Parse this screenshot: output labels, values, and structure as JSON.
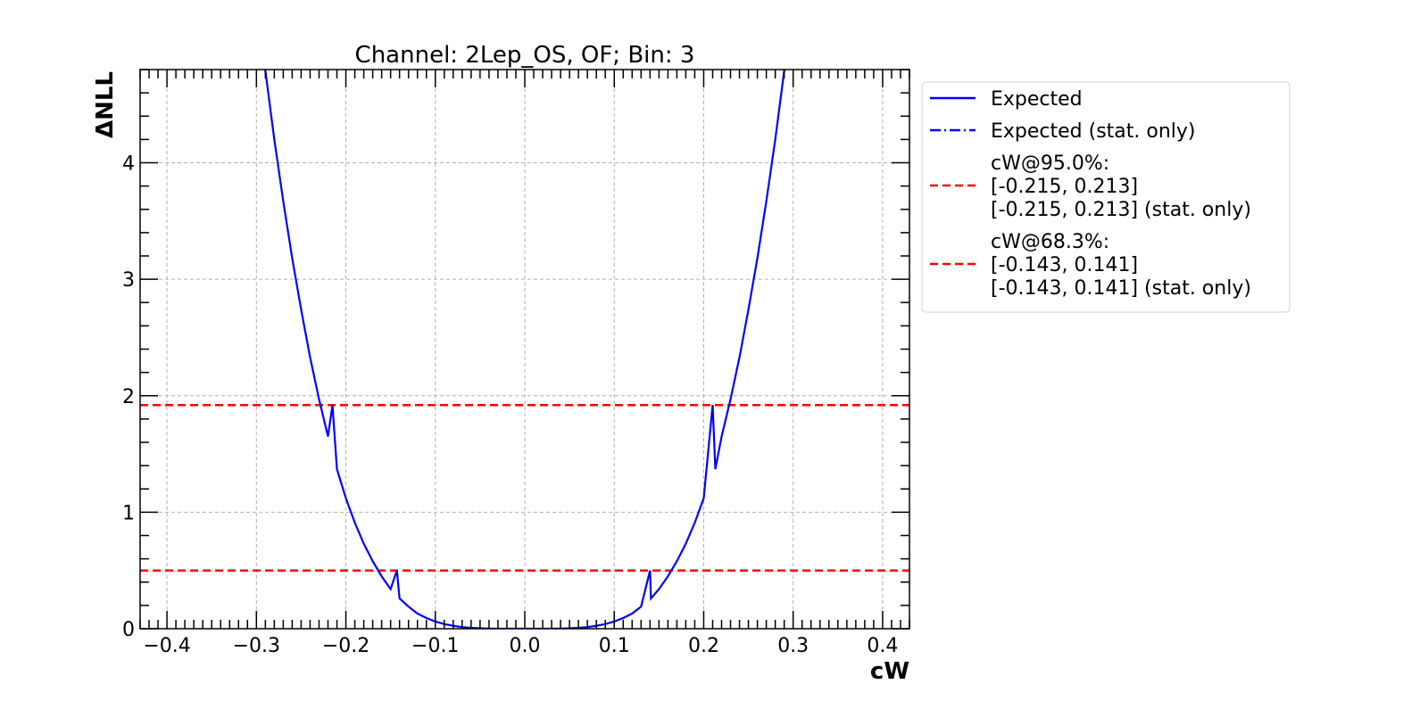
{
  "chart_data": {
    "type": "line",
    "title": "Channel: 2Lep_OS, OF; Bin: 3",
    "xlabel": "cW",
    "ylabel": "ΔNLL",
    "xlim": [
      -0.43,
      0.43
    ],
    "ylim": [
      0,
      4.8
    ],
    "xticks": [
      -0.4,
      -0.3,
      -0.2,
      -0.1,
      0.0,
      0.1,
      0.2,
      0.3,
      0.4
    ],
    "xtick_labels": [
      "−0.4",
      "−0.3",
      "−0.2",
      "−0.1",
      "0.0",
      "0.1",
      "0.2",
      "0.3",
      "0.4"
    ],
    "yticks": [
      0,
      1,
      2,
      3,
      4
    ],
    "ytick_labels": [
      "0",
      "1",
      "2",
      "3",
      "4"
    ],
    "grid": true,
    "legend_position": "outside-right-top",
    "series": [
      {
        "name": "Expected",
        "style": "solid",
        "color": "#0000ff",
        "x": [
          -0.3,
          -0.29,
          -0.28,
          -0.27,
          -0.26,
          -0.25,
          -0.24,
          -0.23,
          -0.22,
          -0.215,
          -0.21,
          -0.2,
          -0.19,
          -0.18,
          -0.17,
          -0.16,
          -0.15,
          -0.143,
          -0.14,
          -0.13,
          -0.12,
          -0.11,
          -0.1,
          -0.09,
          -0.08,
          -0.07,
          -0.06,
          -0.05,
          -0.04,
          -0.03,
          -0.02,
          -0.01,
          0.0,
          0.01,
          0.02,
          0.03,
          0.04,
          0.05,
          0.06,
          0.07,
          0.08,
          0.09,
          0.1,
          0.11,
          0.12,
          0.13,
          0.14,
          0.141,
          0.15,
          0.16,
          0.17,
          0.18,
          0.19,
          0.2,
          0.21,
          0.213,
          0.22,
          0.23,
          0.24,
          0.25,
          0.26,
          0.27,
          0.28,
          0.29,
          0.3
        ],
        "y": [
          5.43,
          4.79,
          4.2,
          3.67,
          3.18,
          2.74,
          2.33,
          1.97,
          1.65,
          1.92,
          1.37,
          1.12,
          0.91,
          0.73,
          0.58,
          0.45,
          0.34,
          0.5,
          0.26,
          0.19,
          0.13,
          0.092,
          0.062,
          0.04,
          0.025,
          0.014,
          0.0077,
          0.0037,
          0.0015,
          0.0005,
          0.0001,
          0.0,
          0.0,
          0.0,
          0.0001,
          0.0005,
          0.0015,
          0.0037,
          0.0077,
          0.014,
          0.025,
          0.04,
          0.062,
          0.092,
          0.13,
          0.19,
          0.5,
          0.26,
          0.34,
          0.45,
          0.58,
          0.73,
          0.91,
          1.12,
          1.92,
          1.37,
          1.65,
          1.97,
          2.33,
          2.74,
          3.18,
          3.67,
          4.2,
          4.79,
          5.43
        ]
      },
      {
        "name": "Expected (stat. only)",
        "style": "dashdot",
        "color": "#0000ff",
        "x": [],
        "y": []
      }
    ],
    "hlines": [
      {
        "y": 1.92,
        "color": "#ff0000",
        "style": "dashed",
        "label": "95.0%"
      },
      {
        "y": 0.5,
        "color": "#ff0000",
        "style": "dashed",
        "label": "68.3%"
      }
    ],
    "legend": [
      {
        "label_lines": [
          "Expected"
        ],
        "style": "solid",
        "color": "#0000ff"
      },
      {
        "label_lines": [
          "Expected (stat. only)"
        ],
        "style": "dashdot",
        "color": "#0000ff"
      },
      {
        "label_lines": [
          "cW@95.0%:",
          "[-0.215, 0.213]",
          "[-0.215, 0.213] (stat. only)"
        ],
        "style": "dashed",
        "color": "#ff0000"
      },
      {
        "label_lines": [
          "cW@68.3%:",
          "[-0.143, 0.141]",
          "[-0.143, 0.141] (stat. only)"
        ],
        "style": "dashed",
        "color": "#ff0000"
      }
    ]
  }
}
